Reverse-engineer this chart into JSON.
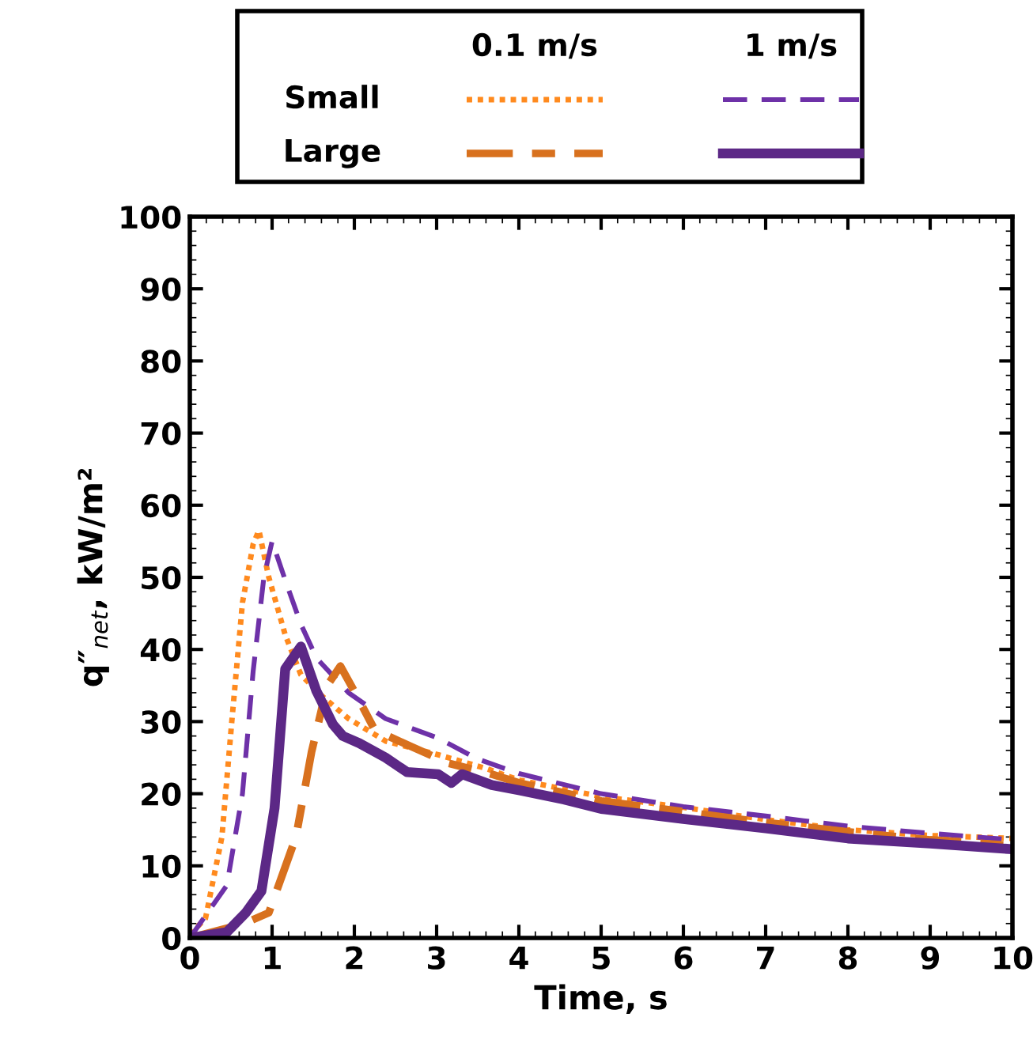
{
  "chart_data": {
    "type": "line",
    "xlabel": "Time, s",
    "ylabel": "q″$_{net}$, kW/m²",
    "xlim": [
      0,
      10
    ],
    "xticks": [
      0,
      1,
      2,
      3,
      4,
      5,
      6,
      7,
      8,
      9,
      10
    ],
    "ylim": [
      0,
      100
    ],
    "yticks": [
      0,
      10,
      20,
      30,
      40,
      50,
      60,
      70,
      80,
      90,
      100
    ],
    "grid": false,
    "marker": "none",
    "annotations": [
      "0.1 m/s",
      "1 m/s",
      "Small",
      "Large"
    ],
    "series": [
      {
        "color": "#ff8a1e",
        "line_style": "dotted",
        "x": [
          0,
          0.19,
          0.39,
          0.51,
          0.64,
          0.77,
          0.84,
          0.96,
          1.16,
          1.35,
          1.61,
          1.93,
          2.38,
          3.02,
          3.6,
          4,
          5,
          6,
          7,
          8,
          9,
          10
        ],
        "values": [
          0.5,
          2.7,
          14,
          30,
          46.5,
          54.6,
          56.5,
          50,
          42,
          36.5,
          33.5,
          30.4,
          27.3,
          25.4,
          23.5,
          21.9,
          19.6,
          18.1,
          16.4,
          15,
          14.2,
          13.8
        ]
      },
      {
        "color": "#6e31a8",
        "line_style": "dashed",
        "x": [
          0,
          0.45,
          0.64,
          0.77,
          0.9,
          1.0,
          1.16,
          1.35,
          1.54,
          1.93,
          2.38,
          3.02,
          3.5,
          4,
          5,
          6,
          7,
          8,
          9,
          10
        ],
        "values": [
          0,
          7.3,
          20,
          37,
          50,
          55,
          49.6,
          43.5,
          38.8,
          34,
          30.4,
          27.7,
          24.8,
          22.8,
          20,
          18.2,
          16.9,
          15.5,
          14.5,
          13.6
        ]
      },
      {
        "color": "#d8711e",
        "line_style": "dashdot",
        "x": [
          0,
          0.64,
          0.96,
          1.29,
          1.48,
          1.67,
          1.83,
          2.0,
          2.25,
          2.7,
          3.15,
          3.67,
          4,
          5,
          6,
          7,
          8,
          9,
          10
        ],
        "values": [
          0,
          1.9,
          3.5,
          14,
          25.8,
          35,
          37.7,
          34.2,
          28.8,
          26.5,
          24.2,
          22.7,
          21.5,
          19,
          17.5,
          16,
          14.7,
          13.6,
          12.8
        ]
      },
      {
        "color": "#5c2886",
        "line_style": "solid",
        "x": [
          0,
          0.45,
          0.68,
          0.87,
          1.03,
          1.16,
          1.35,
          1.54,
          1.74,
          1.86,
          2.06,
          2.38,
          2.64,
          3.02,
          3.18,
          3.31,
          3.67,
          4,
          4.55,
          5,
          6,
          7,
          8,
          9,
          10
        ],
        "values": [
          0,
          0.8,
          3.5,
          6.5,
          18,
          37.3,
          40.4,
          34.2,
          29.6,
          28,
          27,
          25,
          23,
          22.7,
          21.5,
          22.7,
          21.2,
          20.5,
          19.2,
          17.9,
          16.5,
          15.2,
          13.8,
          13.1,
          12.3
        ]
      }
    ]
  }
}
